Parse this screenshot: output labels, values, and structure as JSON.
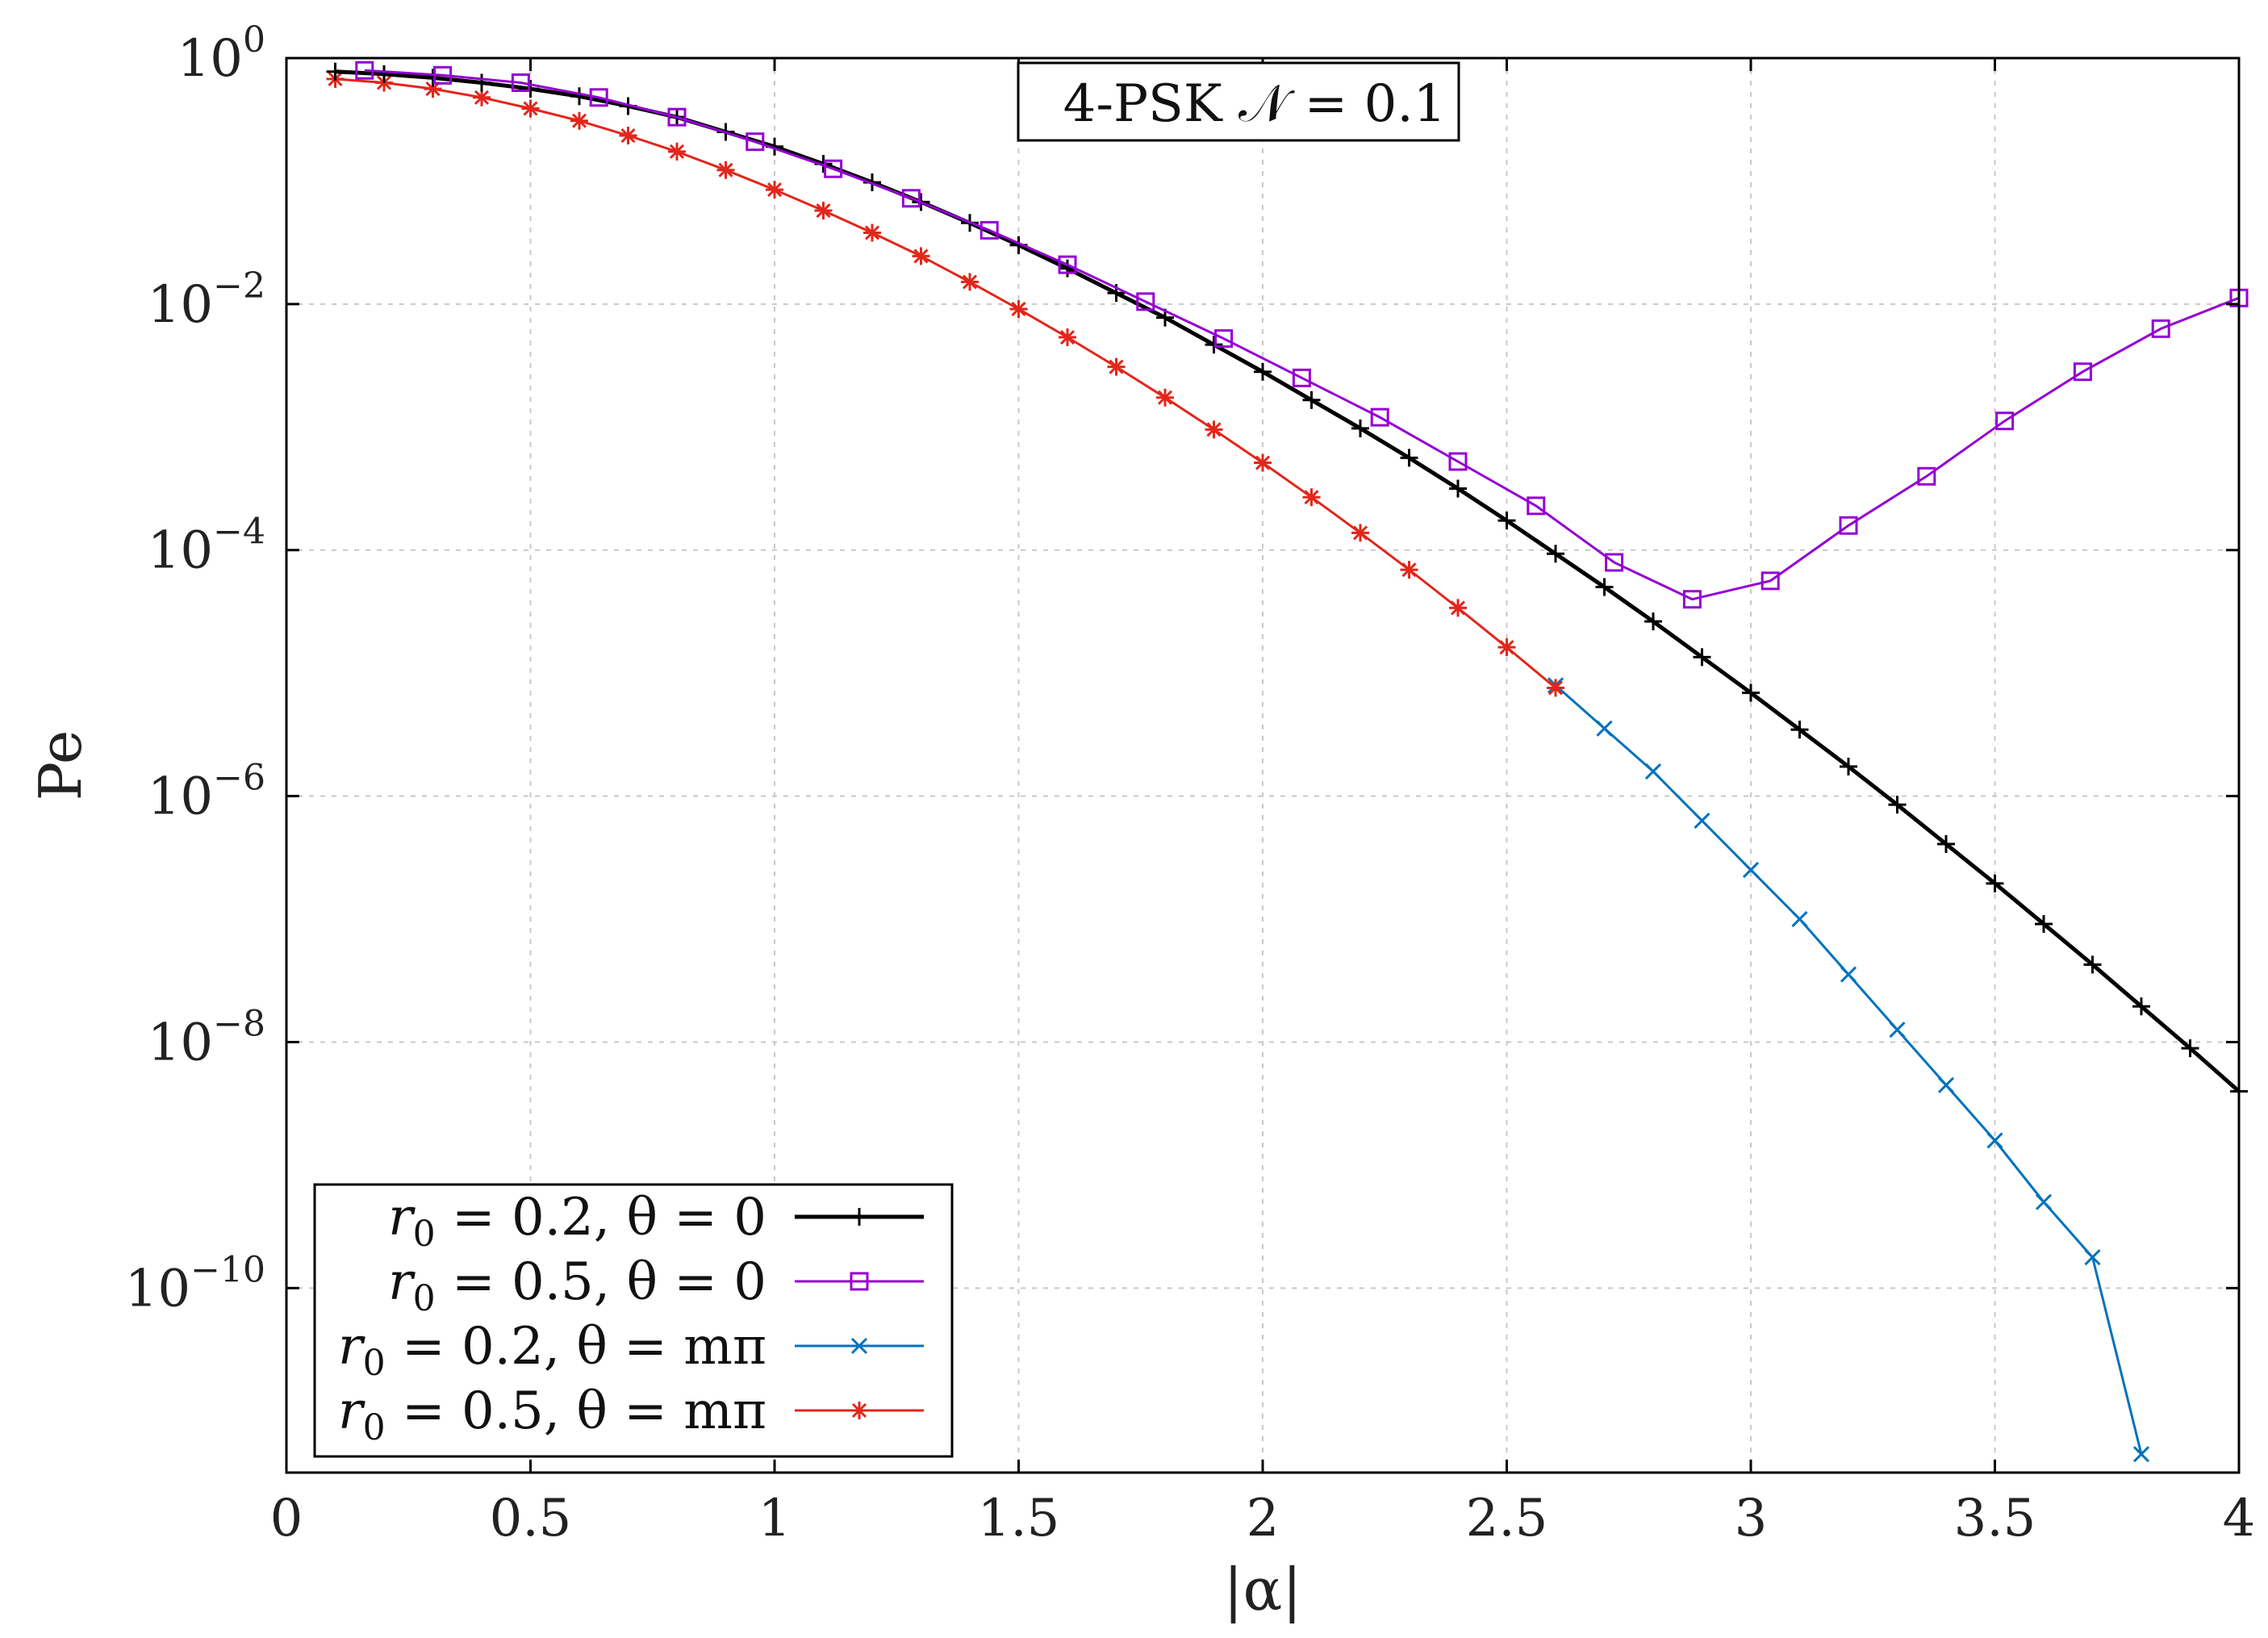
{
  "chart_data": {
    "type": "line",
    "title": "4-PSK 𝒩 = 0.1",
    "xlabel": "|α|",
    "ylabel": "Pe",
    "xlim": [
      0,
      4
    ],
    "ylim_log10": [
      -11.5,
      0
    ],
    "yscale": "log",
    "grid": true,
    "legend_position": "bottom-left",
    "x_ticks": [
      0,
      0.5,
      1,
      1.5,
      2,
      2.5,
      3,
      3.5,
      4
    ],
    "x_tick_labels": [
      "0",
      "0.5",
      "1",
      "1.5",
      "2",
      "2.5",
      "3",
      "3.5",
      "4"
    ],
    "y_ticks_exp": [
      0,
      -2,
      -4,
      -6,
      -8,
      -10
    ],
    "y_tick_base": "10",
    "y_tick_exps": [
      "0",
      "−2",
      "−4",
      "−6",
      "−8",
      "−10"
    ],
    "series": [
      {
        "name": "r0 = 0.2, θ = 0",
        "legend_r": "0.2",
        "legend_theta": "0",
        "color": "#000000",
        "marker": "plus",
        "x": [
          0.1,
          0.2,
          0.3,
          0.4,
          0.5,
          0.6,
          0.7,
          0.8,
          0.9,
          1.0,
          1.1,
          1.2,
          1.3,
          1.4,
          1.5,
          1.6,
          1.7,
          1.8,
          1.9,
          2.0,
          2.1,
          2.2,
          2.3,
          2.4,
          2.5,
          2.6,
          2.7,
          2.8,
          2.9,
          3.0,
          3.1,
          3.2,
          3.3,
          3.4,
          3.5,
          3.6,
          3.7,
          3.8,
          3.9,
          4.0
        ],
        "y_log10": [
          -0.11,
          -0.13,
          -0.16,
          -0.2,
          -0.25,
          -0.31,
          -0.39,
          -0.48,
          -0.6,
          -0.72,
          -0.86,
          -1.01,
          -1.17,
          -1.34,
          -1.52,
          -1.71,
          -1.91,
          -2.11,
          -2.33,
          -2.55,
          -2.78,
          -3.01,
          -3.25,
          -3.5,
          -3.76,
          -4.03,
          -4.3,
          -4.58,
          -4.87,
          -5.16,
          -5.46,
          -5.76,
          -6.07,
          -6.39,
          -6.71,
          -7.04,
          -7.37,
          -7.71,
          -8.05,
          -8.4
        ]
      },
      {
        "name": "r0 = 0.5, θ = 0",
        "legend_r": "0.5",
        "legend_theta": "0",
        "color": "#9400d3",
        "marker": "square",
        "x": [
          0.16,
          0.32,
          0.48,
          0.64,
          0.8,
          0.96,
          1.12,
          1.28,
          1.44,
          1.6,
          1.76,
          1.92,
          2.08,
          2.24,
          2.4,
          2.56,
          2.72,
          2.88,
          3.04,
          3.2,
          3.36,
          3.52,
          3.68,
          3.84,
          4.0
        ],
        "y_log10": [
          -0.1,
          -0.14,
          -0.2,
          -0.32,
          -0.48,
          -0.68,
          -0.9,
          -1.14,
          -1.4,
          -1.68,
          -1.98,
          -2.28,
          -2.6,
          -2.92,
          -3.28,
          -3.64,
          -4.1,
          -4.4,
          -4.25,
          -3.8,
          -3.4,
          -2.95,
          -2.55,
          -2.2,
          -1.95
        ]
      },
      {
        "name": "r0 = 0.2, θ = mπ",
        "legend_r": "0.2",
        "legend_theta": "mπ",
        "color": "#0072bd",
        "marker": "x",
        "x": [
          2.6,
          2.7,
          2.8,
          2.9,
          3.0,
          3.1,
          3.2,
          3.3,
          3.4,
          3.5,
          3.6,
          3.7,
          3.8
        ],
        "y_log10": [
          -5.1,
          -5.45,
          -5.8,
          -6.2,
          -6.6,
          -7.0,
          -7.45,
          -7.9,
          -8.35,
          -8.8,
          -9.3,
          -9.75,
          -11.35
        ]
      },
      {
        "name": "r0 = 0.5, θ = mπ",
        "legend_r": "0.5",
        "legend_theta": "mπ",
        "color": "#e3261b",
        "marker": "asterisk",
        "x": [
          0.1,
          0.2,
          0.3,
          0.4,
          0.5,
          0.6,
          0.7,
          0.8,
          0.9,
          1.0,
          1.1,
          1.2,
          1.3,
          1.4,
          1.5,
          1.6,
          1.7,
          1.8,
          1.9,
          2.0,
          2.1,
          2.2,
          2.3,
          2.4,
          2.5,
          2.6
        ],
        "y_log10": [
          -0.17,
          -0.2,
          -0.25,
          -0.32,
          -0.41,
          -0.51,
          -0.63,
          -0.76,
          -0.91,
          -1.07,
          -1.24,
          -1.42,
          -1.61,
          -1.82,
          -2.04,
          -2.27,
          -2.51,
          -2.76,
          -3.02,
          -3.29,
          -3.57,
          -3.86,
          -4.16,
          -4.47,
          -4.79,
          -5.12
        ]
      }
    ]
  }
}
